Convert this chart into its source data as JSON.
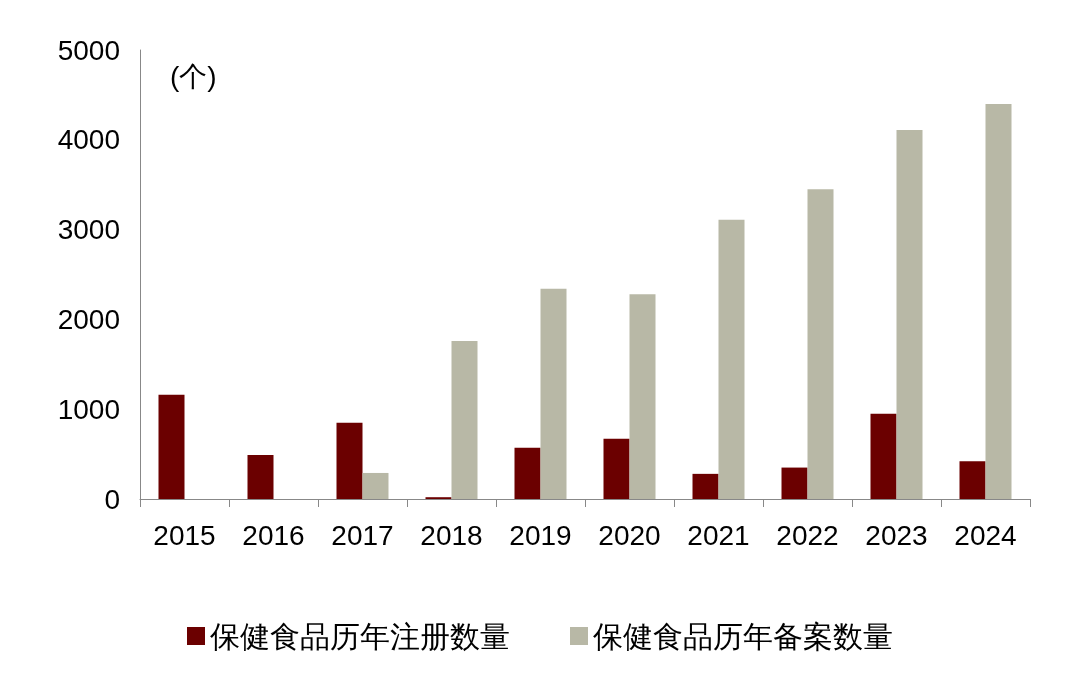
{
  "chart_data": {
    "type": "bar",
    "ylabel": "(个)",
    "categories": [
      "2015",
      "2016",
      "2017",
      "2018",
      "2019",
      "2020",
      "2021",
      "2022",
      "2023",
      "2024"
    ],
    "series": [
      {
        "name": "保健食品历年注册数量",
        "color": "#6b0000",
        "values": [
          1160,
          490,
          850,
          20,
          570,
          670,
          280,
          350,
          950,
          420
        ]
      },
      {
        "name": "保健食品历年备案数量",
        "color": "#b8b8a6",
        "values": [
          null,
          null,
          290,
          1760,
          2340,
          2280,
          3110,
          3450,
          4110,
          4400
        ]
      }
    ],
    "ylim": [
      0,
      5000
    ],
    "yticks": [
      0,
      1000,
      2000,
      3000,
      4000,
      5000
    ],
    "grid": false,
    "legend": "bottom"
  }
}
